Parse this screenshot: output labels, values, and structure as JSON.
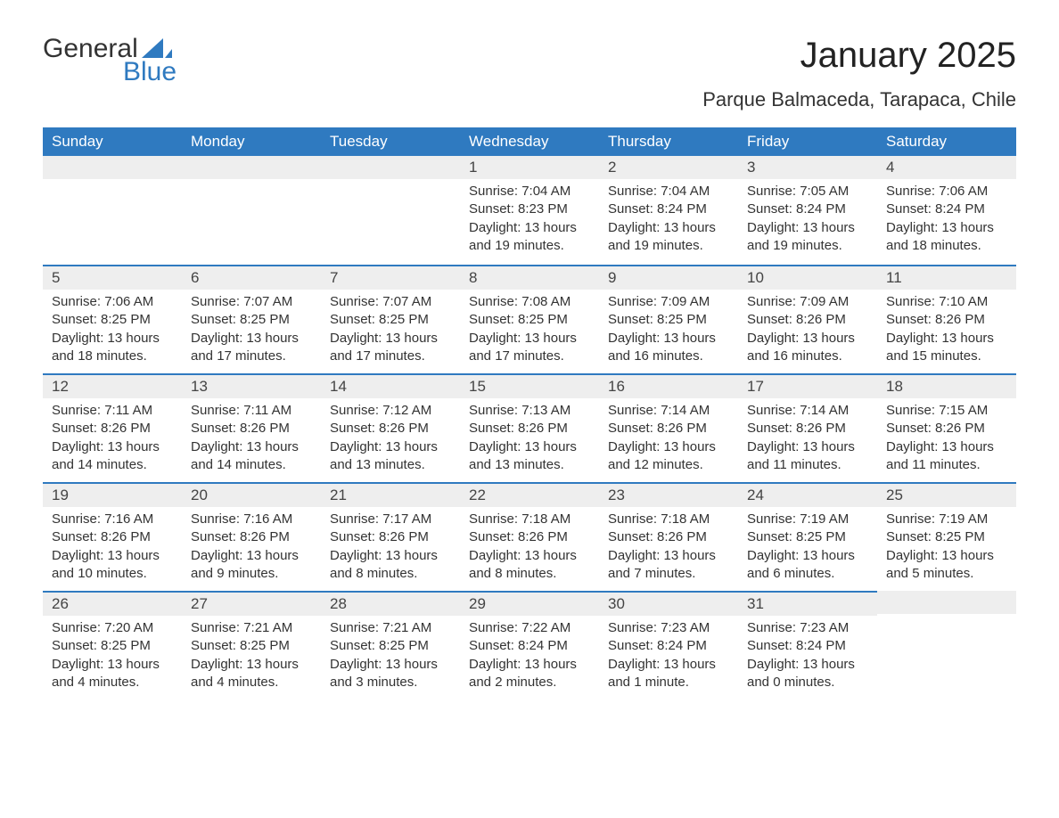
{
  "logo": {
    "word1": "General",
    "word2": "Blue",
    "brand_color": "#2f7ac0"
  },
  "title": "January 2025",
  "location": "Parque Balmaceda, Tarapaca, Chile",
  "colors": {
    "header_bg": "#2f7ac0",
    "header_text": "#ffffff",
    "daynum_bg": "#eeeeee",
    "row_border": "#2f7ac0",
    "body_bg": "#ffffff",
    "text": "#333333"
  },
  "weekdays": [
    "Sunday",
    "Monday",
    "Tuesday",
    "Wednesday",
    "Thursday",
    "Friday",
    "Saturday"
  ],
  "weeks": [
    [
      null,
      null,
      null,
      {
        "n": "1",
        "sunrise": "Sunrise: 7:04 AM",
        "sunset": "Sunset: 8:23 PM",
        "dl1": "Daylight: 13 hours",
        "dl2": "and 19 minutes."
      },
      {
        "n": "2",
        "sunrise": "Sunrise: 7:04 AM",
        "sunset": "Sunset: 8:24 PM",
        "dl1": "Daylight: 13 hours",
        "dl2": "and 19 minutes."
      },
      {
        "n": "3",
        "sunrise": "Sunrise: 7:05 AM",
        "sunset": "Sunset: 8:24 PM",
        "dl1": "Daylight: 13 hours",
        "dl2": "and 19 minutes."
      },
      {
        "n": "4",
        "sunrise": "Sunrise: 7:06 AM",
        "sunset": "Sunset: 8:24 PM",
        "dl1": "Daylight: 13 hours",
        "dl2": "and 18 minutes."
      }
    ],
    [
      {
        "n": "5",
        "sunrise": "Sunrise: 7:06 AM",
        "sunset": "Sunset: 8:25 PM",
        "dl1": "Daylight: 13 hours",
        "dl2": "and 18 minutes."
      },
      {
        "n": "6",
        "sunrise": "Sunrise: 7:07 AM",
        "sunset": "Sunset: 8:25 PM",
        "dl1": "Daylight: 13 hours",
        "dl2": "and 17 minutes."
      },
      {
        "n": "7",
        "sunrise": "Sunrise: 7:07 AM",
        "sunset": "Sunset: 8:25 PM",
        "dl1": "Daylight: 13 hours",
        "dl2": "and 17 minutes."
      },
      {
        "n": "8",
        "sunrise": "Sunrise: 7:08 AM",
        "sunset": "Sunset: 8:25 PM",
        "dl1": "Daylight: 13 hours",
        "dl2": "and 17 minutes."
      },
      {
        "n": "9",
        "sunrise": "Sunrise: 7:09 AM",
        "sunset": "Sunset: 8:25 PM",
        "dl1": "Daylight: 13 hours",
        "dl2": "and 16 minutes."
      },
      {
        "n": "10",
        "sunrise": "Sunrise: 7:09 AM",
        "sunset": "Sunset: 8:26 PM",
        "dl1": "Daylight: 13 hours",
        "dl2": "and 16 minutes."
      },
      {
        "n": "11",
        "sunrise": "Sunrise: 7:10 AM",
        "sunset": "Sunset: 8:26 PM",
        "dl1": "Daylight: 13 hours",
        "dl2": "and 15 minutes."
      }
    ],
    [
      {
        "n": "12",
        "sunrise": "Sunrise: 7:11 AM",
        "sunset": "Sunset: 8:26 PM",
        "dl1": "Daylight: 13 hours",
        "dl2": "and 14 minutes."
      },
      {
        "n": "13",
        "sunrise": "Sunrise: 7:11 AM",
        "sunset": "Sunset: 8:26 PM",
        "dl1": "Daylight: 13 hours",
        "dl2": "and 14 minutes."
      },
      {
        "n": "14",
        "sunrise": "Sunrise: 7:12 AM",
        "sunset": "Sunset: 8:26 PM",
        "dl1": "Daylight: 13 hours",
        "dl2": "and 13 minutes."
      },
      {
        "n": "15",
        "sunrise": "Sunrise: 7:13 AM",
        "sunset": "Sunset: 8:26 PM",
        "dl1": "Daylight: 13 hours",
        "dl2": "and 13 minutes."
      },
      {
        "n": "16",
        "sunrise": "Sunrise: 7:14 AM",
        "sunset": "Sunset: 8:26 PM",
        "dl1": "Daylight: 13 hours",
        "dl2": "and 12 minutes."
      },
      {
        "n": "17",
        "sunrise": "Sunrise: 7:14 AM",
        "sunset": "Sunset: 8:26 PM",
        "dl1": "Daylight: 13 hours",
        "dl2": "and 11 minutes."
      },
      {
        "n": "18",
        "sunrise": "Sunrise: 7:15 AM",
        "sunset": "Sunset: 8:26 PM",
        "dl1": "Daylight: 13 hours",
        "dl2": "and 11 minutes."
      }
    ],
    [
      {
        "n": "19",
        "sunrise": "Sunrise: 7:16 AM",
        "sunset": "Sunset: 8:26 PM",
        "dl1": "Daylight: 13 hours",
        "dl2": "and 10 minutes."
      },
      {
        "n": "20",
        "sunrise": "Sunrise: 7:16 AM",
        "sunset": "Sunset: 8:26 PM",
        "dl1": "Daylight: 13 hours",
        "dl2": "and 9 minutes."
      },
      {
        "n": "21",
        "sunrise": "Sunrise: 7:17 AM",
        "sunset": "Sunset: 8:26 PM",
        "dl1": "Daylight: 13 hours",
        "dl2": "and 8 minutes."
      },
      {
        "n": "22",
        "sunrise": "Sunrise: 7:18 AM",
        "sunset": "Sunset: 8:26 PM",
        "dl1": "Daylight: 13 hours",
        "dl2": "and 8 minutes."
      },
      {
        "n": "23",
        "sunrise": "Sunrise: 7:18 AM",
        "sunset": "Sunset: 8:26 PM",
        "dl1": "Daylight: 13 hours",
        "dl2": "and 7 minutes."
      },
      {
        "n": "24",
        "sunrise": "Sunrise: 7:19 AM",
        "sunset": "Sunset: 8:25 PM",
        "dl1": "Daylight: 13 hours",
        "dl2": "and 6 minutes."
      },
      {
        "n": "25",
        "sunrise": "Sunrise: 7:19 AM",
        "sunset": "Sunset: 8:25 PM",
        "dl1": "Daylight: 13 hours",
        "dl2": "and 5 minutes."
      }
    ],
    [
      {
        "n": "26",
        "sunrise": "Sunrise: 7:20 AM",
        "sunset": "Sunset: 8:25 PM",
        "dl1": "Daylight: 13 hours",
        "dl2": "and 4 minutes."
      },
      {
        "n": "27",
        "sunrise": "Sunrise: 7:21 AM",
        "sunset": "Sunset: 8:25 PM",
        "dl1": "Daylight: 13 hours",
        "dl2": "and 4 minutes."
      },
      {
        "n": "28",
        "sunrise": "Sunrise: 7:21 AM",
        "sunset": "Sunset: 8:25 PM",
        "dl1": "Daylight: 13 hours",
        "dl2": "and 3 minutes."
      },
      {
        "n": "29",
        "sunrise": "Sunrise: 7:22 AM",
        "sunset": "Sunset: 8:24 PM",
        "dl1": "Daylight: 13 hours",
        "dl2": "and 2 minutes."
      },
      {
        "n": "30",
        "sunrise": "Sunrise: 7:23 AM",
        "sunset": "Sunset: 8:24 PM",
        "dl1": "Daylight: 13 hours",
        "dl2": "and 1 minute."
      },
      {
        "n": "31",
        "sunrise": "Sunrise: 7:23 AM",
        "sunset": "Sunset: 8:24 PM",
        "dl1": "Daylight: 13 hours",
        "dl2": "and 0 minutes."
      },
      null
    ]
  ]
}
